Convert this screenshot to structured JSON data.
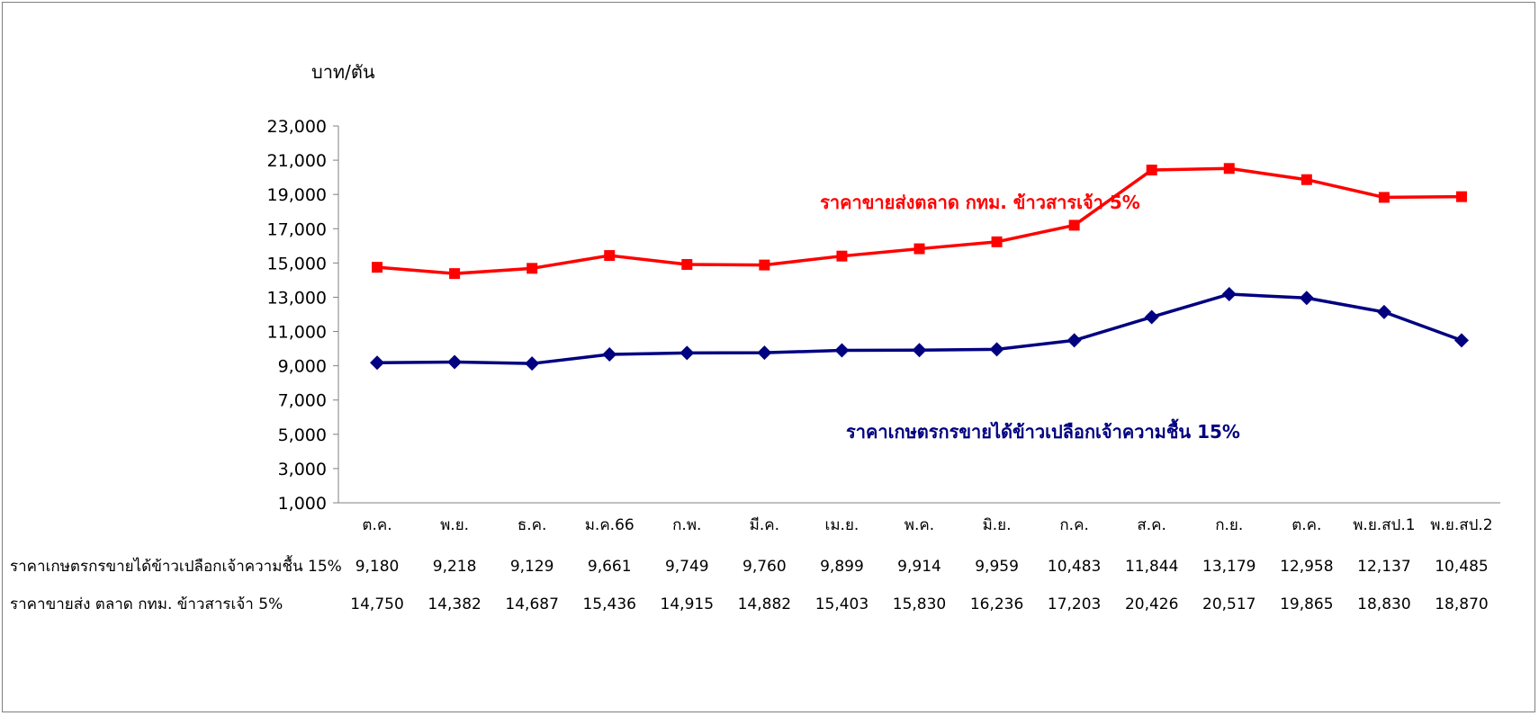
{
  "chart_data": {
    "type": "line",
    "ylabel": "บาท/ตัน",
    "ylim": [
      1000,
      23000
    ],
    "yticks": [
      1000,
      3000,
      5000,
      7000,
      9000,
      11000,
      13000,
      15000,
      17000,
      19000,
      21000,
      23000
    ],
    "ytick_labels": [
      "1,000",
      "3,000",
      "5,000",
      "7,000",
      "9,000",
      "11,000",
      "13,000",
      "15,000",
      "17,000",
      "19,000",
      "21,000",
      "23,000"
    ],
    "categories": [
      "ต.ค.",
      "พ.ย.",
      "ธ.ค.",
      "ม.ค.66",
      "ก.พ.",
      "มี.ค.",
      "เม.ย.",
      "พ.ค.",
      "มิ.ย.",
      "ก.ค.",
      "ส.ค.",
      "ก.ย.",
      "ต.ค.",
      "พ.ย.สป.1",
      "พ.ย.สป.2"
    ],
    "grid": false,
    "series": [
      {
        "key": "paddy",
        "name": "ราคาเกษตรกรขายได้ข้าวเปลือกเจ้าความชื้น 15%",
        "table_label": "ราคาเกษตรกรขายได้ข้าวเปลือกเจ้าความชื้น 15%",
        "color": "#000080",
        "marker": "diamond",
        "values": [
          9180,
          9218,
          9129,
          9661,
          9749,
          9760,
          9899,
          9914,
          9959,
          10483,
          11844,
          13179,
          12958,
          12137,
          10485
        ],
        "value_labels": [
          "9,180",
          "9,218",
          "9,129",
          "9,661",
          "9,749",
          "9,760",
          "9,899",
          "9,914",
          "9,959",
          "10,483",
          "11,844",
          "13,179",
          "12,958",
          "12,137",
          "10,485"
        ]
      },
      {
        "key": "wholesale",
        "name": "ราคาขายส่งตลาด กทม. ข้าวสารเจ้า 5%",
        "table_label": "ราคาขายส่ง ตลาด กทม. ข้าวสารเจ้า 5%",
        "color": "#ff0000",
        "marker": "square",
        "values": [
          14750,
          14382,
          14687,
          15436,
          14915,
          14882,
          15403,
          15830,
          16236,
          17203,
          20426,
          20517,
          19865,
          18830,
          18870
        ],
        "value_labels": [
          "14,750",
          "14,382",
          "14,687",
          "15,436",
          "14,915",
          "14,882",
          "15,403",
          "15,830",
          "16,236",
          "17,203",
          "20,426",
          "20,517",
          "19,865",
          "18,830",
          "18,870"
        ]
      }
    ]
  }
}
